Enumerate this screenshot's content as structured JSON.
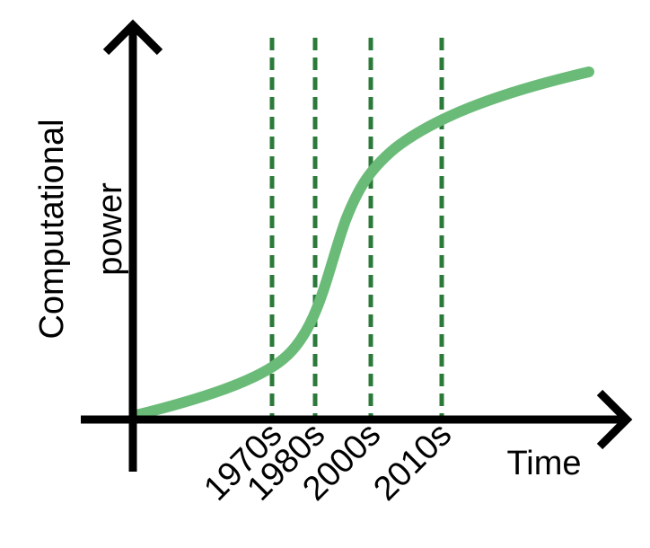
{
  "axes": {
    "y_label": [
      "Computational",
      "power"
    ],
    "x_label": "Time"
  },
  "markers": [
    "1970s",
    "1980s",
    "2000s",
    "2010s"
  ]
}
